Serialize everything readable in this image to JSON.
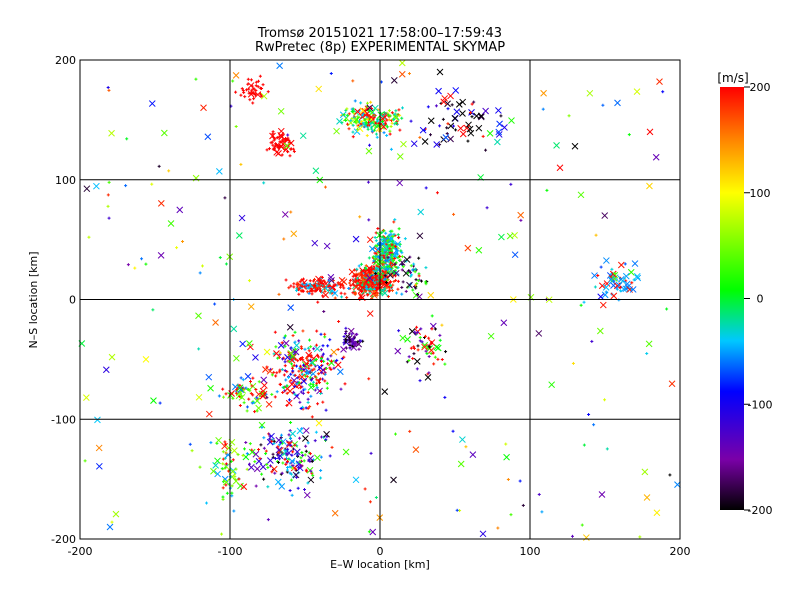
{
  "chart_data": {
    "type": "scatter",
    "title_line1": "Tromsø 20151021 17:58:00–17:59:43",
    "title_line2": "RwPretec (8p) EXPERIMENTAL SKYMAP",
    "xlabel": "E–W location [km]",
    "ylabel": "N–S location [km]",
    "xlim": [
      -200,
      200
    ],
    "ylim": [
      -200,
      200
    ],
    "xticks": [
      -200,
      -100,
      0,
      100,
      200
    ],
    "yticks": [
      -200,
      -100,
      0,
      100,
      200
    ],
    "grid": true,
    "colorbar": {
      "label": "[m/s]",
      "range": [
        -200,
        200
      ],
      "ticks": [
        -200,
        -100,
        0,
        100,
        200
      ]
    },
    "marker_kinds": [
      "small-plus",
      "x-cross"
    ],
    "clusters": [
      {
        "region": "north",
        "x": [
          -50,
          25
        ],
        "y": [
          110,
          185
        ],
        "velocity_mix": "red, green, cyan, yellow"
      },
      {
        "region": "center",
        "x": [
          -30,
          20
        ],
        "y": [
          -20,
          60
        ],
        "velocity_mix": "red, cyan, green"
      },
      {
        "region": "south-west",
        "x": [
          -110,
          0
        ],
        "y": [
          -180,
          -40
        ],
        "velocity_mix": "red, blue, green, cyan"
      },
      {
        "region": "east",
        "x": [
          130,
          185
        ],
        "y": [
          -30,
          30
        ],
        "velocity_mix": "cyan, red, green"
      }
    ],
    "sample_points": [
      {
        "x": -2,
        "y": 10,
        "v": 200,
        "m": "+"
      },
      {
        "x": 5,
        "y": 25,
        "v": -50,
        "m": "+"
      },
      {
        "x": 12,
        "y": 35,
        "v": 20,
        "m": "+"
      },
      {
        "x": -10,
        "y": 150,
        "v": 10,
        "m": "+"
      },
      {
        "x": 15,
        "y": 160,
        "v": -30,
        "m": "+"
      },
      {
        "x": -60,
        "y": 120,
        "v": 200,
        "m": "+"
      },
      {
        "x": 143,
        "y": 20,
        "v": -60,
        "m": "x"
      },
      {
        "x": 170,
        "y": 30,
        "v": -60,
        "m": "x"
      },
      {
        "x": 120,
        "y": 110,
        "v": 200,
        "m": "x"
      },
      {
        "x": 130,
        "y": 128,
        "v": -200,
        "m": "x"
      },
      {
        "x": -55,
        "y": -130,
        "v": -120,
        "m": "+"
      },
      {
        "x": -20,
        "y": -40,
        "v": -150,
        "m": "+"
      },
      {
        "x": 32,
        "y": -65,
        "v": -200,
        "m": "x"
      },
      {
        "x": -120,
        "y": -140,
        "v": 50,
        "m": "+"
      },
      {
        "x": -180,
        "y": -190,
        "v": -60,
        "m": "x"
      },
      {
        "x": 40,
        "y": 190,
        "v": -200,
        "m": "x"
      },
      {
        "x": 180,
        "y": 140,
        "v": 200,
        "m": "x"
      }
    ]
  }
}
